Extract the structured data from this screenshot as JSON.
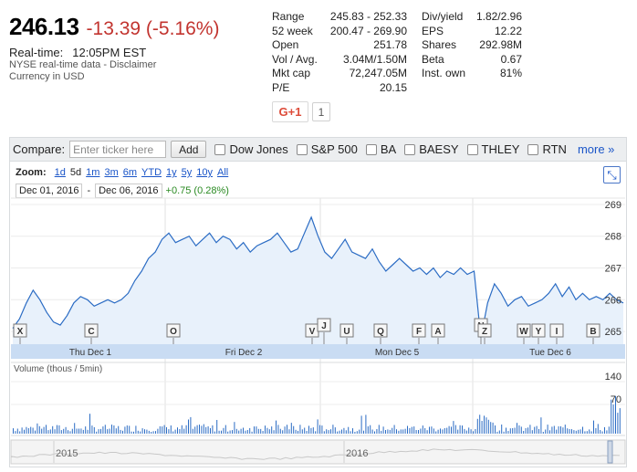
{
  "quote": {
    "price": "246.13",
    "change": "-13.39 (-5.16%)",
    "realtime_label": "Real-time:",
    "realtime_time": "12:05PM EST",
    "exchange_note": "NYSE real-time data - Disclaimer",
    "currency": "Currency in USD"
  },
  "stats_left": [
    {
      "key": "Range",
      "value": "245.83 - 252.33"
    },
    {
      "key": "52 week",
      "value": "200.47 - 269.90"
    },
    {
      "key": "Open",
      "value": "251.78"
    },
    {
      "key": "Vol / Avg.",
      "value": "3.04M/1.50M"
    },
    {
      "key": "Mkt cap",
      "value": "72,247.05M"
    },
    {
      "key": "P/E",
      "value": "20.15"
    }
  ],
  "stats_right": [
    {
      "key": "Div/yield",
      "value": "1.82/2.96"
    },
    {
      "key": "EPS",
      "value": "12.22"
    },
    {
      "key": "Shares",
      "value": "292.98M"
    },
    {
      "key": "Beta",
      "value": "0.67"
    },
    {
      "key": "Inst. own",
      "value": "81%"
    }
  ],
  "social": {
    "gplus_label": "G+1",
    "count": "1"
  },
  "compare": {
    "label": "Compare:",
    "placeholder": "Enter ticker here",
    "add_label": "Add",
    "tickers": [
      "Dow Jones",
      "S&P 500",
      "BA",
      "BAESY",
      "THLEY",
      "RTN"
    ],
    "more_label": "more »"
  },
  "zoom": {
    "label": "Zoom:",
    "options": [
      "1d",
      "5d",
      "1m",
      "3m",
      "6m",
      "YTD",
      "1y",
      "5y",
      "10y",
      "All"
    ],
    "active": "5d"
  },
  "range": {
    "start": "Dec 01, 2016",
    "end": "Dec 06, 2016",
    "gain": "+0.75 (0.28%)"
  },
  "colors": {
    "negative": "#c2342f",
    "positive": "#2a8a22",
    "line": "#2b6cc4",
    "link": "#1a55c8"
  },
  "chart_data": {
    "type": "line",
    "y_ticks": [
      "269",
      "268",
      "267",
      "266",
      "265"
    ],
    "y_range": [
      264.6,
      269.2
    ],
    "date_labels": [
      "Thu Dec 1",
      "Fri Dec 2",
      "Mon Dec 5",
      "Tue Dec 6"
    ],
    "series": [
      {
        "values": [
          265.1,
          265.4,
          265.9,
          266.3,
          266.0,
          265.6,
          265.3,
          265.2,
          265.5,
          265.9,
          266.1,
          266.0,
          265.8,
          265.9,
          266.0,
          265.9,
          266.0,
          266.2,
          266.6,
          266.9,
          267.3,
          267.5,
          267.9,
          268.1,
          267.8,
          267.9,
          268.0,
          267.7,
          267.9,
          268.1,
          267.8,
          268.0,
          267.9,
          267.6,
          267.8,
          267.5,
          267.7,
          267.8,
          267.9,
          268.1,
          267.8,
          267.5,
          267.6,
          268.1,
          268.6,
          268.0,
          267.5,
          267.3,
          267.6,
          267.9,
          267.5,
          267.4,
          267.3,
          267.6,
          267.2,
          266.9,
          267.1,
          267.3,
          267.1,
          266.9,
          267.0,
          266.8,
          267.0,
          266.7,
          266.9,
          266.8,
          267.0,
          266.8,
          266.9,
          264.8,
          265.9,
          266.5,
          266.2,
          265.8,
          266.0,
          266.1,
          265.8,
          265.9,
          266.0,
          266.2,
          266.5,
          266.1,
          266.4,
          266.0,
          266.2,
          266.0,
          266.1,
          266.0,
          266.2,
          266.0,
          265.9
        ]
      }
    ],
    "event_markers": [
      "X",
      "C",
      "O",
      "V",
      "J",
      "U",
      "Q",
      "F",
      "A",
      "N",
      "Z",
      "W",
      "Y",
      "I",
      "B"
    ],
    "volume": {
      "label": "Volume (thous / 5min)",
      "y_ticks": [
        "140",
        "70"
      ]
    },
    "navigator": {
      "labels": [
        "2015",
        "2016"
      ]
    }
  }
}
